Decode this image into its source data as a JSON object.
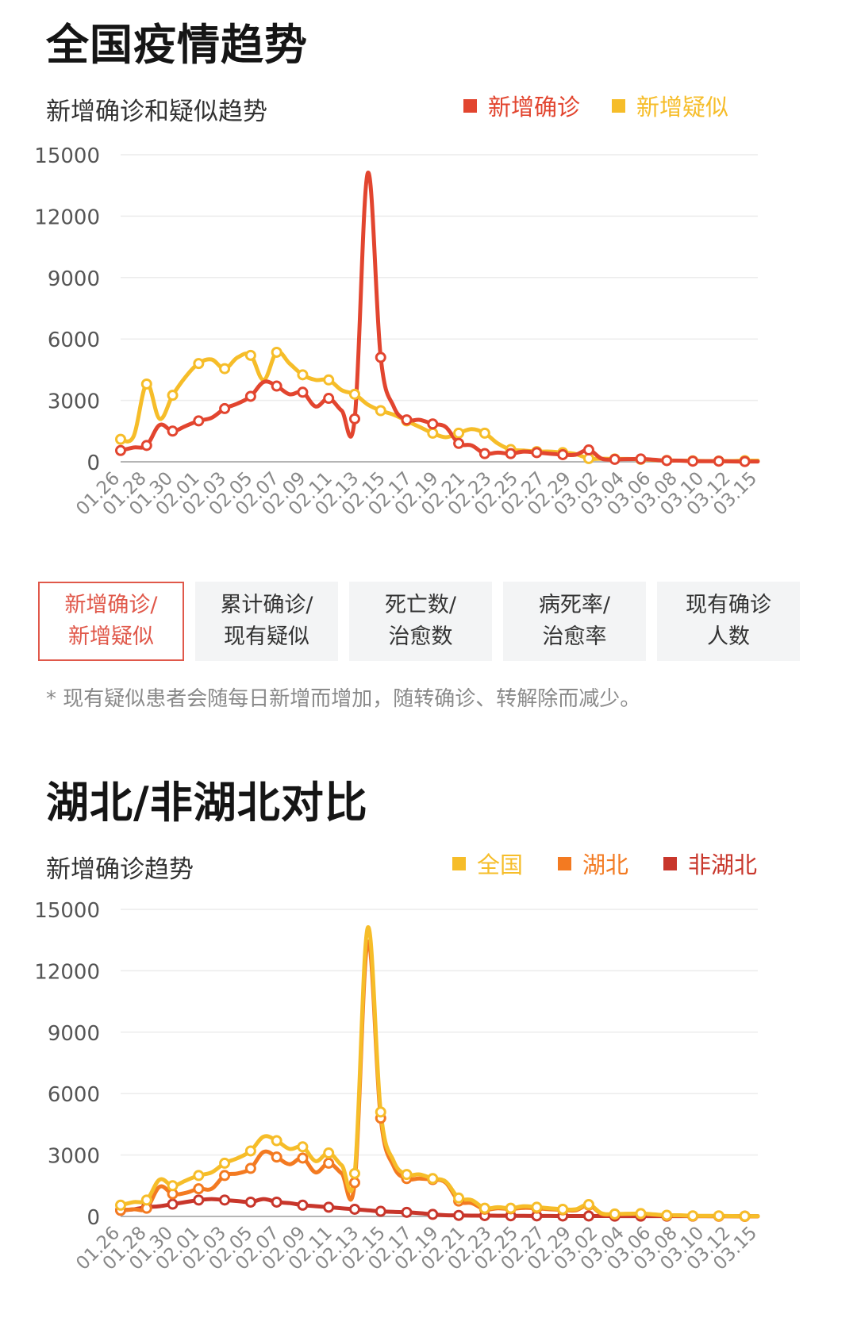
{
  "national": {
    "title": "全国疫情趋势",
    "chart_subtitle": "新增确诊和疑似趋势",
    "legend": [
      {
        "label": "新增确诊",
        "color": "#e2452f"
      },
      {
        "label": "新增疑似",
        "color": "#f6bd29"
      }
    ],
    "tabs": [
      {
        "label": "新增确诊/\n新增疑似",
        "active": true
      },
      {
        "label": "累计确诊/\n现有疑似",
        "active": false
      },
      {
        "label": "死亡数/\n治愈数",
        "active": false
      },
      {
        "label": "病死率/\n治愈率",
        "active": false
      },
      {
        "label": "现有确诊\n人数",
        "active": false
      }
    ],
    "note": "* 现有疑似患者会随每日新增而增加，随转确诊、转解除而减少。"
  },
  "hubei": {
    "title": "湖北/非湖北对比",
    "chart_subtitle": "新增确诊趋势",
    "legend": [
      {
        "label": "全国",
        "color": "#f6bd29"
      },
      {
        "label": "湖北",
        "color": "#f37a21"
      },
      {
        "label": "非湖北",
        "color": "#c8362b"
      }
    ]
  },
  "chart_data": [
    {
      "type": "line",
      "title": "新增确诊和疑似趋势",
      "ylim": [
        0,
        15000
      ],
      "yticks": [
        "0",
        "3000",
        "6000",
        "9000",
        "12000",
        "15000"
      ],
      "x_tick_labels": [
        "01.26",
        "01.28",
        "01.30",
        "02.01",
        "02.03",
        "02.05",
        "02.07",
        "02.09",
        "02.11",
        "02.13",
        "02.15",
        "02.17",
        "02.19",
        "02.21",
        "02.23",
        "02.25",
        "02.27",
        "02.29",
        "03.02",
        "03.04",
        "03.06",
        "03.08",
        "03.10",
        "03.12",
        "03.15"
      ],
      "grid": true,
      "legend_position": "top-right",
      "series": [
        {
          "name": "新增确诊",
          "color": "#e2452f",
          "values": [
            [
              0,
              550
            ],
            [
              1,
              700
            ],
            [
              2,
              800
            ],
            [
              3,
              1800
            ],
            [
              4,
              1500
            ],
            [
              5,
              1750
            ],
            [
              6,
              2000
            ],
            [
              7,
              2150
            ],
            [
              8,
              2600
            ],
            [
              9,
              2850
            ],
            [
              10,
              3200
            ],
            [
              11,
              3900
            ],
            [
              12,
              3700
            ],
            [
              13,
              3300
            ],
            [
              14,
              3400
            ],
            [
              15,
              2700
            ],
            [
              16,
              3100
            ],
            [
              17,
              2500
            ],
            [
              18,
              2100
            ],
            [
              19,
              14100
            ],
            [
              20,
              5100
            ],
            [
              21,
              2700
            ],
            [
              22,
              2050
            ],
            [
              23,
              2050
            ],
            [
              24,
              1850
            ],
            [
              25,
              1700
            ],
            [
              26,
              900
            ],
            [
              27,
              800
            ],
            [
              28,
              400
            ],
            [
              29,
              450
            ],
            [
              30,
              400
            ],
            [
              31,
              500
            ],
            [
              32,
              450
            ],
            [
              33,
              400
            ],
            [
              34,
              350
            ],
            [
              35,
              350
            ],
            [
              36,
              580
            ],
            [
              37,
              150
            ],
            [
              38,
              120
            ],
            [
              39,
              130
            ],
            [
              40,
              140
            ],
            [
              41,
              100
            ],
            [
              42,
              60
            ],
            [
              43,
              60
            ],
            [
              44,
              30
            ],
            [
              45,
              30
            ],
            [
              46,
              30
            ],
            [
              47,
              20
            ],
            [
              48,
              15
            ],
            [
              49,
              15
            ]
          ]
        },
        {
          "name": "新增疑似",
          "color": "#f6bd29",
          "values": [
            [
              0,
              1100
            ],
            [
              1,
              1250
            ],
            [
              2,
              3800
            ],
            [
              3,
              2100
            ],
            [
              4,
              3250
            ],
            [
              5,
              4150
            ],
            [
              6,
              4800
            ],
            [
              7,
              5000
            ],
            [
              8,
              4550
            ],
            [
              9,
              5100
            ],
            [
              10,
              5200
            ],
            [
              11,
              4000
            ],
            [
              12,
              5350
            ],
            [
              13,
              4800
            ],
            [
              14,
              4250
            ],
            [
              15,
              4000
            ],
            [
              16,
              4000
            ],
            [
              17,
              3500
            ],
            [
              18,
              3300
            ],
            [
              19,
              2800
            ],
            [
              20,
              2500
            ],
            [
              21,
              2300
            ],
            [
              22,
              2000
            ],
            [
              23,
              1700
            ],
            [
              24,
              1400
            ],
            [
              25,
              1200
            ],
            [
              26,
              1400
            ],
            [
              27,
              1600
            ],
            [
              28,
              1400
            ],
            [
              29,
              900
            ],
            [
              30,
              600
            ],
            [
              31,
              550
            ],
            [
              32,
              500
            ],
            [
              33,
              500
            ],
            [
              34,
              450
            ],
            [
              35,
              380
            ],
            [
              36,
              160
            ],
            [
              37,
              150
            ],
            [
              38,
              140
            ],
            [
              39,
              140
            ],
            [
              40,
              120
            ],
            [
              41,
              90
            ],
            [
              42,
              70
            ],
            [
              43,
              60
            ],
            [
              44,
              50
            ],
            [
              45,
              40
            ],
            [
              46,
              40
            ],
            [
              47,
              40
            ],
            [
              48,
              60
            ],
            [
              49,
              60
            ]
          ]
        }
      ]
    },
    {
      "type": "line",
      "title": "新增确诊趋势",
      "ylim": [
        0,
        15000
      ],
      "yticks": [
        "0",
        "3000",
        "6000",
        "9000",
        "12000",
        "15000"
      ],
      "x_tick_labels": [
        "01.26",
        "01.28",
        "01.30",
        "02.01",
        "02.03",
        "02.05",
        "02.07",
        "02.09",
        "02.11",
        "02.13",
        "02.15",
        "02.17",
        "02.19",
        "02.21",
        "02.23",
        "02.25",
        "02.27",
        "02.29",
        "03.02",
        "03.04",
        "03.06",
        "03.08",
        "03.10",
        "03.12",
        "03.15"
      ],
      "grid": true,
      "legend_position": "top-right",
      "series": [
        {
          "name": "全国",
          "color": "#f6bd29",
          "values": [
            [
              0,
              550
            ],
            [
              1,
              700
            ],
            [
              2,
              800
            ],
            [
              3,
              1800
            ],
            [
              4,
              1500
            ],
            [
              5,
              1750
            ],
            [
              6,
              2000
            ],
            [
              7,
              2150
            ],
            [
              8,
              2600
            ],
            [
              9,
              2850
            ],
            [
              10,
              3200
            ],
            [
              11,
              3900
            ],
            [
              12,
              3700
            ],
            [
              13,
              3300
            ],
            [
              14,
              3400
            ],
            [
              15,
              2700
            ],
            [
              16,
              3100
            ],
            [
              17,
              2500
            ],
            [
              18,
              2100
            ],
            [
              19,
              14100
            ],
            [
              20,
              5100
            ],
            [
              21,
              2700
            ],
            [
              22,
              2050
            ],
            [
              23,
              2050
            ],
            [
              24,
              1850
            ],
            [
              25,
              1700
            ],
            [
              26,
              900
            ],
            [
              27,
              800
            ],
            [
              28,
              400
            ],
            [
              29,
              450
            ],
            [
              30,
              400
            ],
            [
              31,
              500
            ],
            [
              32,
              450
            ],
            [
              33,
              400
            ],
            [
              34,
              350
            ],
            [
              35,
              350
            ],
            [
              36,
              580
            ],
            [
              37,
              150
            ],
            [
              38,
              120
            ],
            [
              39,
              130
            ],
            [
              40,
              140
            ],
            [
              41,
              100
            ],
            [
              42,
              60
            ],
            [
              43,
              60
            ],
            [
              44,
              30
            ],
            [
              45,
              30
            ],
            [
              46,
              30
            ],
            [
              47,
              20
            ],
            [
              48,
              15
            ],
            [
              49,
              15
            ]
          ]
        },
        {
          "name": "湖北",
          "color": "#f37a21",
          "values": [
            [
              0,
              300
            ],
            [
              1,
              350
            ],
            [
              2,
              400
            ],
            [
              3,
              1450
            ],
            [
              4,
              1100
            ],
            [
              5,
              1150
            ],
            [
              6,
              1350
            ],
            [
              7,
              1350
            ],
            [
              8,
              2000
            ],
            [
              9,
              2100
            ],
            [
              10,
              2350
            ],
            [
              11,
              3150
            ],
            [
              12,
              2900
            ],
            [
              13,
              2550
            ],
            [
              14,
              2850
            ],
            [
              15,
              2150
            ],
            [
              16,
              2600
            ],
            [
              17,
              2100
            ],
            [
              18,
              1650
            ],
            [
              19,
              13400
            ],
            [
              20,
              4800
            ],
            [
              21,
              2450
            ],
            [
              22,
              1850
            ],
            [
              23,
              1850
            ],
            [
              24,
              1800
            ],
            [
              25,
              1650
            ],
            [
              26,
              750
            ],
            [
              27,
              650
            ],
            [
              28,
              350
            ],
            [
              29,
              400
            ],
            [
              30,
              370
            ],
            [
              31,
              420
            ],
            [
              32,
              400
            ],
            [
              33,
              350
            ],
            [
              34,
              320
            ],
            [
              35,
              300
            ],
            [
              36,
              550
            ],
            [
              37,
              120
            ],
            [
              38,
              110
            ],
            [
              39,
              120
            ],
            [
              40,
              130
            ],
            [
              41,
              90
            ],
            [
              42,
              40
            ],
            [
              43,
              40
            ],
            [
              44,
              20
            ],
            [
              45,
              15
            ],
            [
              46,
              10
            ],
            [
              47,
              5
            ],
            [
              48,
              0
            ],
            [
              49,
              0
            ]
          ]
        },
        {
          "name": "非湖北",
          "color": "#c8362b",
          "values": [
            [
              0,
              300
            ],
            [
              1,
              350
            ],
            [
              2,
              450
            ],
            [
              3,
              500
            ],
            [
              4,
              600
            ],
            [
              5,
              700
            ],
            [
              6,
              800
            ],
            [
              7,
              850
            ],
            [
              8,
              800
            ],
            [
              9,
              750
            ],
            [
              10,
              700
            ],
            [
              11,
              850
            ],
            [
              12,
              700
            ],
            [
              13,
              650
            ],
            [
              14,
              550
            ],
            [
              15,
              500
            ],
            [
              16,
              450
            ],
            [
              17,
              400
            ],
            [
              18,
              350
            ],
            [
              19,
              300
            ],
            [
              20,
              250
            ],
            [
              21,
              220
            ],
            [
              22,
              200
            ],
            [
              23,
              160
            ],
            [
              24,
              100
            ],
            [
              25,
              60
            ],
            [
              26,
              50
            ],
            [
              27,
              40
            ],
            [
              28,
              40
            ],
            [
              29,
              35
            ],
            [
              30,
              30
            ],
            [
              31,
              30
            ],
            [
              32,
              25
            ],
            [
              33,
              25
            ],
            [
              34,
              20
            ],
            [
              35,
              20
            ],
            [
              36,
              20
            ],
            [
              37,
              20
            ],
            [
              38,
              15
            ],
            [
              39,
              15
            ],
            [
              40,
              15
            ],
            [
              41,
              15
            ],
            [
              42,
              15
            ],
            [
              43,
              15
            ],
            [
              44,
              15
            ],
            [
              45,
              15
            ],
            [
              46,
              15
            ],
            [
              47,
              15
            ],
            [
              48,
              15
            ],
            [
              49,
              15
            ]
          ]
        }
      ]
    }
  ]
}
